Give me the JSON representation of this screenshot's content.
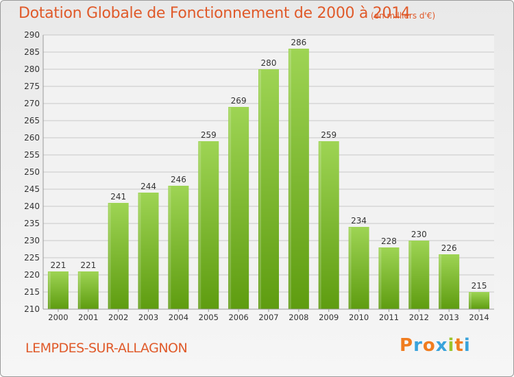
{
  "chart_data": {
    "type": "bar",
    "title": "Dotation Globale de Fonctionnement de 2000 à 2014",
    "subtitle": "(en milliers d'€)",
    "categories": [
      "2000",
      "2001",
      "2002",
      "2003",
      "2004",
      "2005",
      "2006",
      "2007",
      "2008",
      "2009",
      "2010",
      "2011",
      "2012",
      "2013",
      "2014"
    ],
    "values": [
      221,
      221,
      241,
      244,
      246,
      259,
      269,
      280,
      286,
      259,
      234,
      228,
      230,
      226,
      215
    ],
    "ylim": [
      210,
      290
    ],
    "yticks": [
      210,
      215,
      220,
      225,
      230,
      235,
      240,
      245,
      250,
      255,
      260,
      265,
      270,
      275,
      280,
      285,
      290
    ],
    "xlabel": "",
    "ylabel": "",
    "grid": true,
    "bar_color_top": "#9ed454",
    "bar_color_bottom": "#5e9c10"
  },
  "commune": "LEMPDES-SUR-ALLAGNON",
  "logo": {
    "letters": [
      "P",
      "r",
      "o",
      "x",
      "i",
      "t",
      "i"
    ],
    "colors": [
      "#f07c1e",
      "#3aa3db",
      "#f07c1e",
      "#3aa3db",
      "#9bc52b",
      "#f07c1e",
      "#3aa3db"
    ]
  }
}
